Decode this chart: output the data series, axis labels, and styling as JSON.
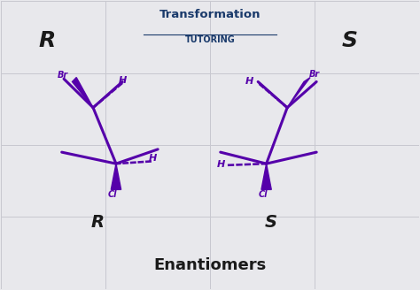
{
  "bg_color": "#e8e8ec",
  "grid_color": "#c8c8d0",
  "purple": "#5500aa",
  "black": "#1a1a1a",
  "navy": "#1a3a6b",
  "title": "Enantiomers",
  "logo_main": "Transformation",
  "logo_sub": "TUTORING",
  "label_R_top": "R",
  "label_S_top": "S",
  "label_R_bot": "R",
  "label_S_bot": "S"
}
